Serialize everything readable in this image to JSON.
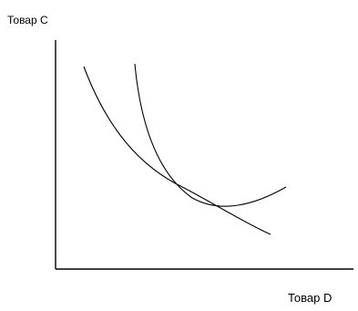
{
  "diagram": {
    "y_axis_label": "Товар C",
    "x_axis_label": "Товар D",
    "colors": {
      "background": "#ffffff",
      "lines": "#000000"
    }
  }
}
